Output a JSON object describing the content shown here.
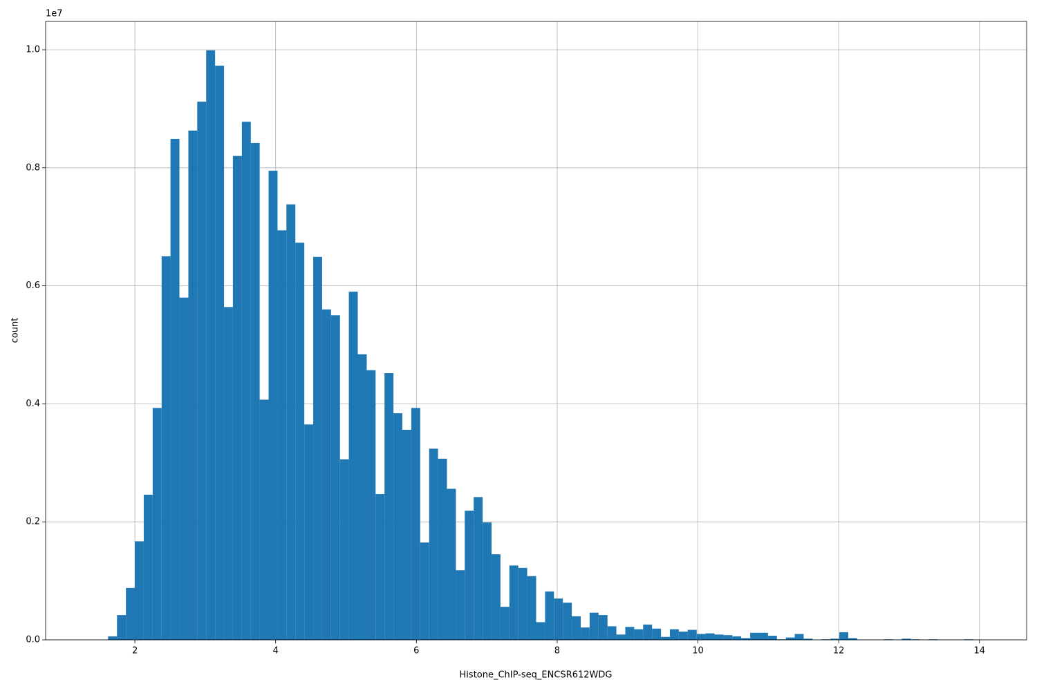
{
  "chart_data": {
    "type": "histogram",
    "x_label": "Histone_ChIP-seq_ENCSR612WDG",
    "y_label": "count",
    "y_offset_label": "1e7",
    "color": "#1f77b4",
    "grid": true,
    "xlim": [
      0.732,
      14.67
    ],
    "ylim": [
      0,
      10480000
    ],
    "xticks": [
      2,
      4,
      6,
      8,
      10,
      12,
      14
    ],
    "yticks": [
      {
        "value": 0,
        "label": "0.0"
      },
      {
        "value": 2000000,
        "label": "0.2"
      },
      {
        "value": 4000000,
        "label": "0.4"
      },
      {
        "value": 6000000,
        "label": "0.6"
      },
      {
        "value": 8000000,
        "label": "0.8"
      },
      {
        "value": 10000000,
        "label": "1.0"
      }
    ],
    "bins": [
      1.366,
      1.493,
      1.619,
      1.746,
      1.873,
      1.999,
      2.126,
      2.253,
      2.38,
      2.506,
      2.633,
      2.76,
      2.886,
      3.013,
      3.14,
      3.267,
      3.393,
      3.52,
      3.647,
      3.773,
      3.9,
      4.027,
      4.153,
      4.28,
      4.407,
      4.534,
      4.66,
      4.787,
      4.914,
      5.04,
      5.167,
      5.294,
      5.42,
      5.547,
      5.674,
      5.8,
      5.927,
      6.054,
      6.181,
      6.307,
      6.434,
      6.561,
      6.687,
      6.814,
      6.941,
      7.068,
      7.194,
      7.321,
      7.448,
      7.574,
      7.701,
      7.828,
      7.954,
      8.081,
      8.208,
      8.335,
      8.461,
      8.588,
      8.715,
      8.841,
      8.968,
      9.095,
      9.221,
      9.348,
      9.475,
      9.602,
      9.728,
      9.855,
      9.982,
      10.108,
      10.235,
      10.362,
      10.488,
      10.615,
      10.742,
      10.869,
      10.995,
      11.122,
      11.249,
      11.375,
      11.502,
      11.629,
      11.755,
      11.882,
      12.009,
      12.136,
      12.262,
      12.389,
      12.516,
      12.642,
      12.769,
      12.896,
      13.022,
      13.149,
      13.276,
      13.403,
      13.529,
      13.656,
      13.783,
      13.909,
      14.036
    ],
    "values": [
      0,
      0,
      60000,
      420000,
      880000,
      1670000,
      2460000,
      3930000,
      6500000,
      8490000,
      5800000,
      8630000,
      9120000,
      9990000,
      9730000,
      5640000,
      8200000,
      8780000,
      8420000,
      4070000,
      7950000,
      6940000,
      7380000,
      6730000,
      3650000,
      6490000,
      5600000,
      5500000,
      3060000,
      5900000,
      4840000,
      4570000,
      2470000,
      4520000,
      3840000,
      3560000,
      3930000,
      1650000,
      3240000,
      3070000,
      2560000,
      1180000,
      2190000,
      2420000,
      1990000,
      1450000,
      560000,
      1260000,
      1220000,
      1080000,
      300000,
      820000,
      700000,
      630000,
      400000,
      210000,
      460000,
      420000,
      230000,
      90000,
      220000,
      180000,
      260000,
      190000,
      50000,
      180000,
      140000,
      170000,
      100000,
      110000,
      90000,
      80000,
      60000,
      30000,
      120000,
      120000,
      70000,
      10000,
      40000,
      100000,
      20000,
      0,
      10000,
      20000,
      130000,
      30000,
      5000,
      5000,
      5000,
      10000,
      5000,
      20000,
      10000,
      5000,
      10000,
      5000,
      5000,
      5000,
      10000,
      5000
    ]
  }
}
